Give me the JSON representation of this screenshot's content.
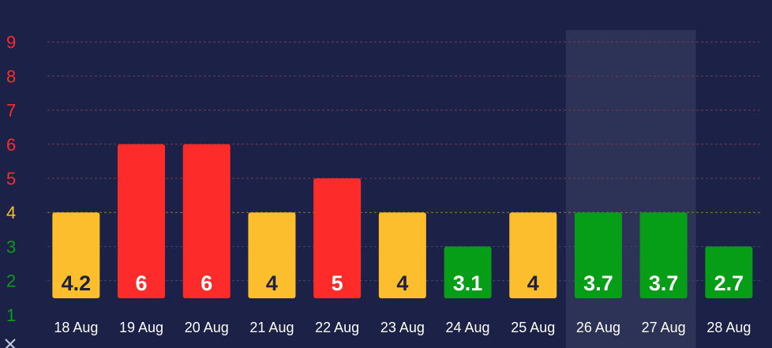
{
  "chart_data": {
    "type": "bar",
    "title": "",
    "xlabel": "",
    "ylabel": "",
    "categories": [
      "18 Aug",
      "19 Aug",
      "20 Aug",
      "21 Aug",
      "22 Aug",
      "23 Aug",
      "24 Aug",
      "25 Aug",
      "26 Aug",
      "27 Aug",
      "28 Aug"
    ],
    "values": [
      4.2,
      6,
      6,
      4,
      5,
      4,
      3.1,
      4,
      3.7,
      3.7,
      2.7
    ],
    "labels": [
      "4.2",
      "6",
      "6",
      "4",
      "5",
      "4",
      "3.1",
      "4",
      "3.7",
      "3.7",
      "2.7"
    ],
    "bar_tops": [
      4,
      6,
      6,
      4,
      5,
      4,
      3,
      4,
      4,
      4,
      3
    ],
    "ylim": [
      1,
      9
    ],
    "yticks": [
      "1",
      "2",
      "3",
      "4",
      "5",
      "6",
      "7",
      "8",
      "9"
    ],
    "grid": true,
    "highlight_categories": [
      "26 Aug",
      "27 Aug"
    ],
    "level_colors": {
      "low": "#069e16",
      "moderate": "#fcbe2d",
      "high": "#fe2b2b"
    },
    "ytick_colors": {
      "1": "#069e16",
      "2": "#069e16",
      "3": "#069e16",
      "4": "#fcbe2d",
      "5": "#fe2b2b",
      "6": "#fe2b2b",
      "7": "#fe2b2b",
      "8": "#fe2b2b",
      "9": "#fe2b2b"
    },
    "label_colors": {
      "low": "#ffffff",
      "moderate": "#1e213f",
      "high": "#ffffff"
    },
    "background": "#1c2147",
    "highlight_color": "#2d3257",
    "grid_colors": {
      "high": "#7a3a4a",
      "moderate": "#8a7a3a",
      "low": "#3a4a6a"
    },
    "close_icon": "close-icon"
  }
}
